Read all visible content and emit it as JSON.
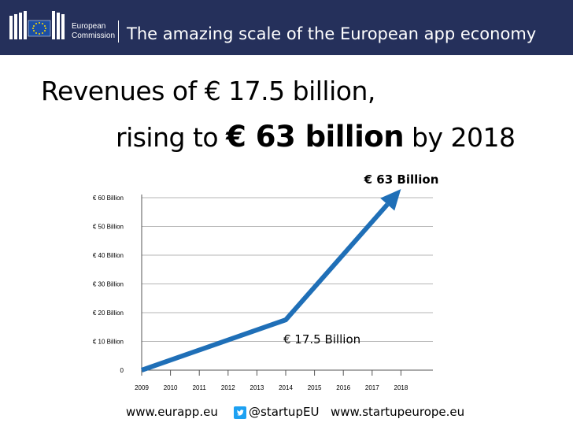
{
  "header": {
    "org_line1": "European",
    "org_line2": "Commission",
    "title": "The amazing scale of the European app economy"
  },
  "headline": {
    "line1": "Revenues of € 17.5 billion,",
    "line2_prefix": "rising to ",
    "line2_bold": "€ 63 billion",
    "line2_suffix": " by 2018"
  },
  "chart_data": {
    "type": "line",
    "title": "",
    "xlabel": "",
    "ylabel": "",
    "x": [
      2009,
      2014,
      2018
    ],
    "categories": [
      "2009",
      "2010",
      "2011",
      "2012",
      "2013",
      "2014",
      "2015",
      "2016",
      "2017",
      "2018"
    ],
    "series": [
      {
        "values": [
          0,
          17.5,
          63
        ],
        "color": "#1f6fb7"
      }
    ],
    "ylim": [
      0,
      60
    ],
    "ytick_labels": [
      "0",
      "€ 10 Billion",
      "€ 20 Billion",
      "€ 30 Billion",
      "€ 40 Billion",
      "€ 50 Billion",
      "€ 60 Billion"
    ],
    "annotations": [
      {
        "x": 2014,
        "y": 17.5,
        "text": "€ 17.5 Billion"
      },
      {
        "x": 2018,
        "y": 63,
        "text": "€ 63 Billion"
      }
    ],
    "grid": true,
    "arrow_end": true
  },
  "footer": {
    "site1": "www.eurapp.eu",
    "twitter": "@startupEU",
    "site2": "www.startupeurope.eu"
  },
  "colors": {
    "banner": "#25305b",
    "line": "#1f6fb7",
    "grid": "#b5b5b5"
  }
}
